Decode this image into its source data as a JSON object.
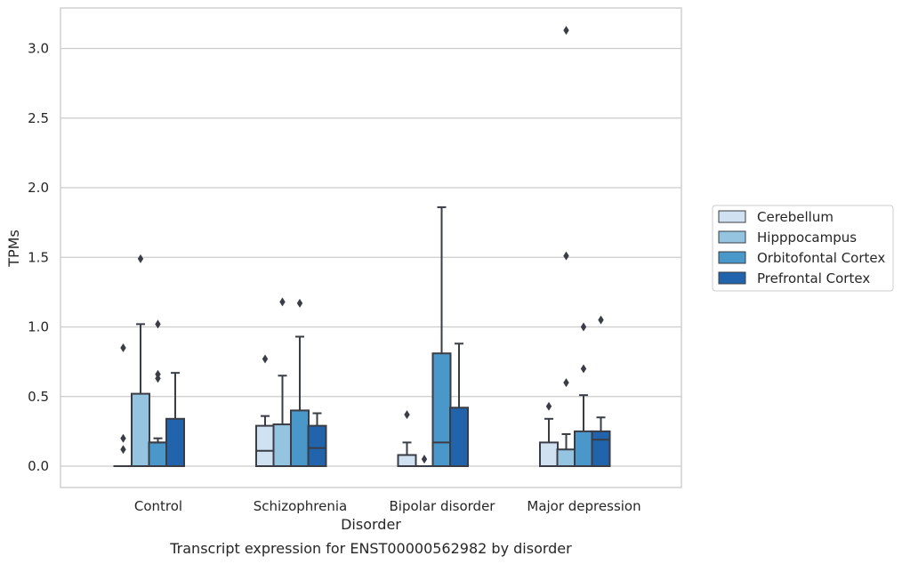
{
  "chart_data": {
    "type": "box",
    "caption": "Transcript expression for ENST00000562982 by disorder",
    "xlabel": "Disorder",
    "ylabel": "TPMs",
    "ylim": [
      -0.15,
      3.3
    ],
    "yticks": [
      "0.0",
      "0.5",
      "1.0",
      "1.5",
      "2.0",
      "2.5",
      "3.0"
    ],
    "categories": [
      "Control",
      "Schizophrenia",
      "Bipolar disorder",
      "Major depression"
    ],
    "grid": true,
    "legend_position": "right",
    "series": [
      {
        "name": "Cerebellum",
        "color": "#d0e1f2",
        "boxes": [
          {
            "q1": 0,
            "median": 0,
            "q3": 0,
            "whisker_low": 0,
            "whisker_high": 0,
            "outliers": [
              0.85,
              0.2,
              0.12
            ]
          },
          {
            "q1": 0,
            "median": 0.11,
            "q3": 0.29,
            "whisker_low": 0,
            "whisker_high": 0.36,
            "outliers": [
              0.77
            ]
          },
          {
            "q1": 0,
            "median": 0,
            "q3": 0.08,
            "whisker_low": 0,
            "whisker_high": 0.17,
            "outliers": [
              0.37
            ]
          },
          {
            "q1": 0,
            "median": 0,
            "q3": 0.17,
            "whisker_low": 0,
            "whisker_high": 0.34,
            "outliers": [
              0.43
            ]
          }
        ]
      },
      {
        "name": "Hipppocampus",
        "color": "#94c4df",
        "boxes": [
          {
            "q1": 0,
            "median": 0,
            "q3": 0.52,
            "whisker_low": 0,
            "whisker_high": 1.02,
            "outliers": [
              1.49
            ]
          },
          {
            "q1": 0,
            "median": 0,
            "q3": 0.3,
            "whisker_low": 0,
            "whisker_high": 0.65,
            "outliers": [
              1.18
            ]
          },
          {
            "q1": 0,
            "median": 0,
            "q3": 0,
            "whisker_low": 0,
            "whisker_high": 0,
            "outliers": [
              0.05
            ]
          },
          {
            "q1": 0,
            "median": 0,
            "q3": 0.12,
            "whisker_low": 0,
            "whisker_high": 0.23,
            "outliers": [
              0.6,
              1.51,
              3.13
            ]
          }
        ]
      },
      {
        "name": "Orbitofontal Cortex",
        "color": "#4a98c9",
        "boxes": [
          {
            "q1": 0,
            "median": 0.17,
            "q3": 0.17,
            "whisker_low": 0,
            "whisker_high": 0.2,
            "outliers": [
              0.63,
              0.66,
              1.02
            ]
          },
          {
            "q1": 0,
            "median": 0,
            "q3": 0.4,
            "whisker_low": 0,
            "whisker_high": 0.93,
            "outliers": [
              1.17
            ]
          },
          {
            "q1": 0,
            "median": 0.17,
            "q3": 0.81,
            "whisker_low": 0,
            "whisker_high": 1.86,
            "outliers": []
          },
          {
            "q1": 0,
            "median": 0,
            "q3": 0.25,
            "whisker_low": 0,
            "whisker_high": 0.51,
            "outliers": [
              0.7,
              1.0
            ]
          }
        ]
      },
      {
        "name": "Prefrontal Cortex",
        "color": "#2164ab",
        "boxes": [
          {
            "q1": 0,
            "median": 0,
            "q3": 0.34,
            "whisker_low": 0,
            "whisker_high": 0.67,
            "outliers": []
          },
          {
            "q1": 0,
            "median": 0.13,
            "q3": 0.29,
            "whisker_low": 0,
            "whisker_high": 0.38,
            "outliers": []
          },
          {
            "q1": 0,
            "median": 0,
            "q3": 0.42,
            "whisker_low": 0,
            "whisker_high": 0.88,
            "outliers": []
          },
          {
            "q1": 0,
            "median": 0.19,
            "q3": 0.25,
            "whisker_low": 0,
            "whisker_high": 0.35,
            "outliers": [
              1.05
            ]
          }
        ]
      }
    ]
  }
}
